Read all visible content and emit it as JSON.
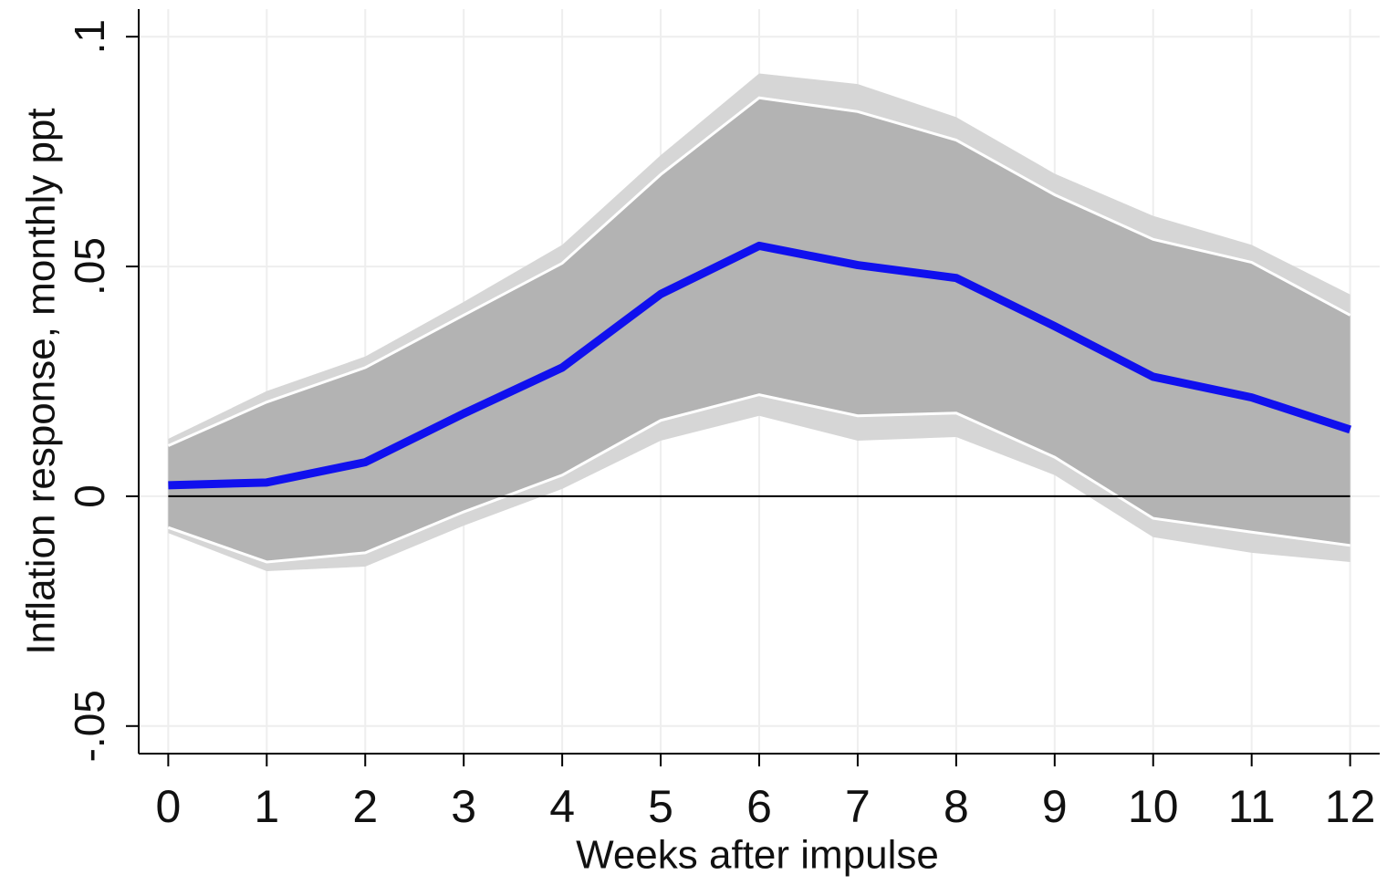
{
  "chart_data": {
    "type": "line",
    "x_label": "Weeks after impulse",
    "y_label": "Inflation response, monthly ppt",
    "x": [
      0,
      1,
      2,
      3,
      4,
      5,
      6,
      7,
      8,
      9,
      10,
      11,
      12
    ],
    "xlim": [
      -0.3,
      12.3
    ],
    "xticks": [
      0,
      1,
      2,
      3,
      4,
      5,
      6,
      7,
      8,
      9,
      10,
      11,
      12
    ],
    "ylim": [
      -0.056,
      0.106
    ],
    "yticks": [
      {
        "value": -0.05,
        "label": "-.05"
      },
      0,
      {
        "value": 0.05,
        "label": ".05"
      },
      {
        "value": 0.1,
        "label": ".1"
      }
    ],
    "grid": true,
    "bands": [
      {
        "color": "#d6d6d6",
        "upper": [
          0.0125,
          0.0229,
          0.0304,
          0.0423,
          0.0547,
          0.0742,
          0.092,
          0.0897,
          0.0825,
          0.0702,
          0.061,
          0.0547,
          0.0439
        ],
        "lower": [
          -0.008,
          -0.0163,
          -0.0153,
          -0.0064,
          0.0016,
          0.0121,
          0.0175,
          0.0121,
          0.0129,
          0.0046,
          -0.0089,
          -0.0123,
          -0.0143
        ]
      },
      {
        "color": "#b3b3b3",
        "upper": [
          0.011,
          0.0205,
          0.028,
          0.0394,
          0.0507,
          0.07,
          0.0867,
          0.0837,
          0.0775,
          0.0656,
          0.0559,
          0.0509,
          0.0394
        ],
        "lower": [
          -0.0068,
          -0.0143,
          -0.0123,
          -0.0034,
          0.0046,
          0.0165,
          0.0221,
          0.0175,
          0.0181,
          0.0085,
          -0.0048,
          -0.0078,
          -0.0107
        ]
      }
    ],
    "series": [
      {
        "color": "#1010ee",
        "values": [
          0.0024,
          0.003,
          0.0074,
          0.018,
          0.028,
          0.044,
          0.0545,
          0.0503,
          0.0475,
          0.037,
          0.026,
          0.0215,
          0.0145
        ]
      }
    ]
  }
}
